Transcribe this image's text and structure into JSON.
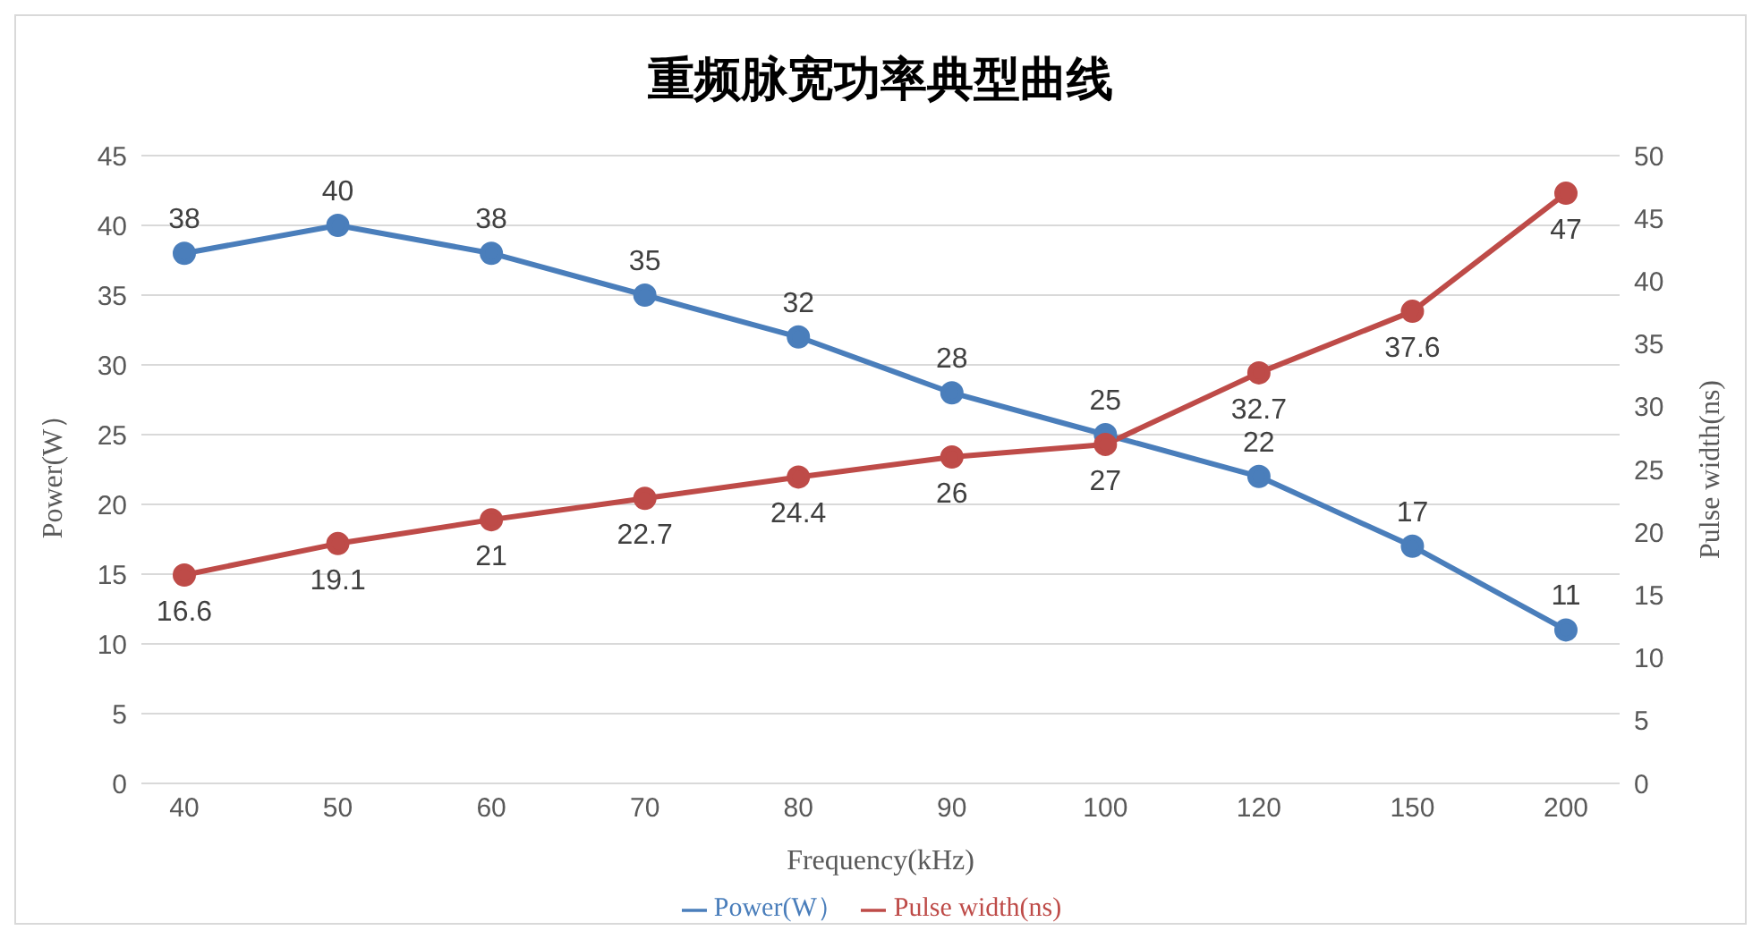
{
  "chart_data": {
    "type": "line",
    "title": "重频脉宽功率典型曲线",
    "xlabel": "Frequency(kHz)",
    "ylabel": "Power(W）",
    "y2label": "Pulse width(ns)",
    "categories": [
      "40",
      "50",
      "60",
      "70",
      "80",
      "90",
      "100",
      "120",
      "150",
      "200"
    ],
    "series": [
      {
        "name": "Power(W）",
        "color": "#4a7ebb",
        "values": [
          38,
          40,
          38,
          35,
          32,
          28,
          25,
          22,
          17,
          11
        ]
      },
      {
        "name": "Pulse width(ns)",
        "color": "#be4b48",
        "axis": "y2",
        "values": [
          16.6,
          19.1,
          21,
          22.7,
          24.4,
          26,
          27,
          32.7,
          37.6,
          47
        ]
      }
    ],
    "ylim": [
      0,
      45
    ],
    "yticks": [
      0,
      5,
      10,
      15,
      20,
      25,
      30,
      35,
      40,
      45
    ],
    "y2lim": [
      0,
      50
    ],
    "y2ticks": [
      0,
      5,
      10,
      15,
      20,
      25,
      30,
      35,
      40,
      45,
      50
    ],
    "grid": "y",
    "legend": "bottom",
    "marker": "circle",
    "line_style": "solid",
    "data_labels": true
  }
}
